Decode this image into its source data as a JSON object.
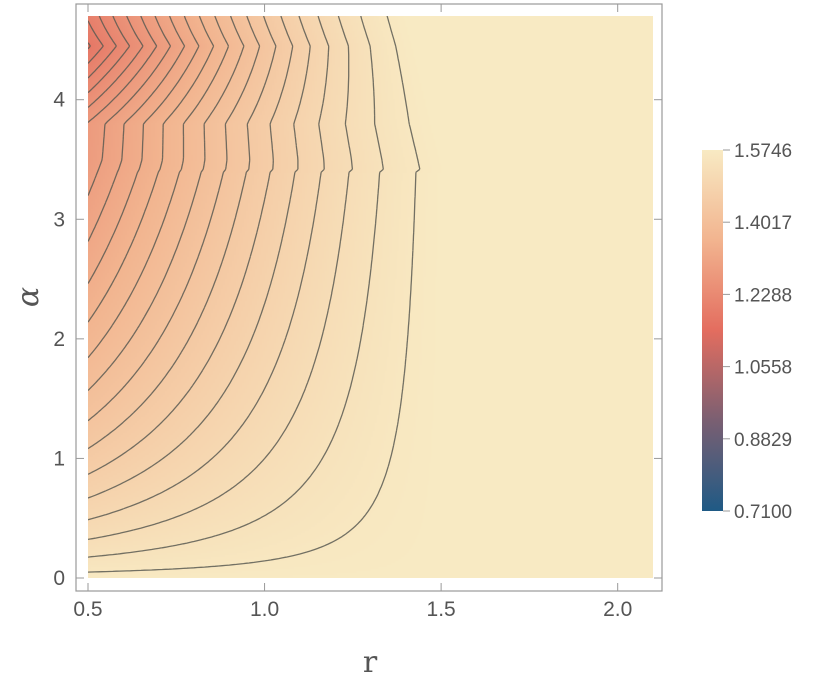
{
  "chart_data": {
    "type": "heatmap",
    "subtype": "contour",
    "title": "",
    "xlabel": "r",
    "ylabel": "α",
    "xlim": [
      0.5,
      2.1
    ],
    "ylim": [
      0,
      4.7
    ],
    "x_ticks": [
      "0.5",
      "1.0",
      "1.5",
      "2.0"
    ],
    "x_tick_values": [
      0.5,
      1.0,
      1.5,
      2.0
    ],
    "y_ticks": [
      "0",
      "1",
      "2",
      "3",
      "4"
    ],
    "y_tick_values": [
      0,
      1,
      2,
      3,
      4
    ],
    "colorbar": {
      "min": 0.71,
      "max": 1.5746,
      "labels": [
        "1.5746",
        "1.4017",
        "1.2288",
        "1.0558",
        "0.8829",
        "0.7100"
      ],
      "label_values": [
        1.5746,
        1.4017,
        1.2288,
        1.0558,
        0.8829,
        0.71
      ],
      "colormap": [
        {
          "v": 0.0,
          "color": "#1f5a85"
        },
        {
          "v": 0.25,
          "color": "#7a5f72"
        },
        {
          "v": 0.5,
          "color": "#e36d5f"
        },
        {
          "v": 0.75,
          "color": "#f2b48f"
        },
        {
          "v": 1.0,
          "color": "#f8eac3"
        }
      ]
    },
    "discontinuity_r": 1.51,
    "plateau_value": 1.5746,
    "contour_count": 30,
    "grid": false,
    "legend": "colorbar-right"
  }
}
